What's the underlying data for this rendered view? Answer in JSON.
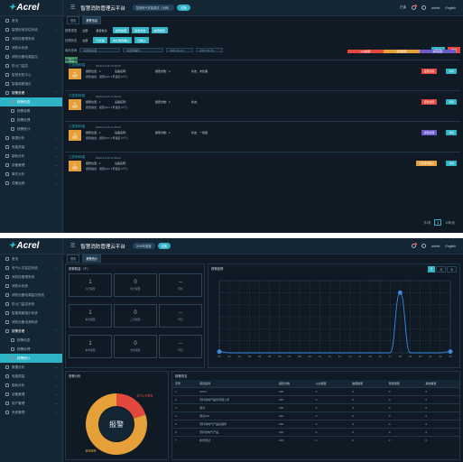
{
  "brand": {
    "logo": "Acrel"
  },
  "screen1": {
    "header": {
      "title": "智慧消防管理云平台",
      "pill": "智慧电气安装调试（示例）",
      "pill2": "切换",
      "right_items": [
        "已读",
        "admin",
        "English"
      ]
    },
    "tabs": [
      "首页",
      "报警信息"
    ],
    "sidebar": [
      {
        "label": "首页",
        "state": ""
      },
      {
        "label": "智慧用电评估系统",
        "state": "arrow"
      },
      {
        "label": "消防栓管理系统",
        "state": ""
      },
      {
        "label": "消防水系统",
        "state": ""
      },
      {
        "label": "消防设备电源监控",
        "state": ""
      },
      {
        "label": "防火门监控",
        "state": ""
      },
      {
        "label": "智慧安防中心",
        "state": ""
      },
      {
        "label": "智能疏散指示",
        "state": ""
      },
      {
        "label": "报警查看",
        "state": "open"
      },
      {
        "label": "报警信息",
        "state": "active"
      },
      {
        "label": "报警查看",
        "state": "sub"
      },
      {
        "label": "报警处理",
        "state": "sub"
      },
      {
        "label": "报警统计",
        "state": "sub"
      },
      {
        "label": "数据分析",
        "state": "arrow"
      },
      {
        "label": "电能质量",
        "state": "arrow"
      },
      {
        "label": "能耗分析",
        "state": "arrow"
      },
      {
        "label": "设备管理",
        "state": "arrow"
      },
      {
        "label": "事件分析",
        "state": "arrow"
      },
      {
        "label": "设备运维",
        "state": "arrow"
      }
    ],
    "filters": {
      "row1_label": "报警类型",
      "row1_chips": [
        "全部",
        "报警信息",
        "报警故障",
        "报警状态",
        "故障报警"
      ],
      "row2_label": "处理状态",
      "row2_chips": [
        "全部",
        "已处理",
        "未处理待确认",
        "已确认"
      ],
      "row3_label": "事件查询",
      "search_placeholder": "请选择设备",
      "search2_placeholder": "请选择事件",
      "start_date": "2020-01-01",
      "end_date": "2020-01-15",
      "btn_query": "查询",
      "btn_reset": "重置",
      "btn_export": "导出"
    },
    "legend": [
      {
        "label": "火灾报警",
        "color": "#e2483d"
      },
      {
        "label": "预警报警",
        "color": "#e5a03a"
      },
      {
        "label": "故障报警",
        "color": "#6a5acd"
      }
    ],
    "alarms": [
      {
        "name": "江苏安科瑞",
        "time": "2020-01-15 14:36:22",
        "icon": "报警",
        "point": "报警位置：1",
        "dev": "设备名称：",
        "count": "报警次数：1",
        "state": "状态：未处理",
        "desc": "报警描述：报警(ch1 1号温度 37℃)",
        "badge": "报警处理",
        "badge_color": "#e2483d",
        "detail": "详情"
      },
      {
        "name": "江苏安科瑞",
        "time": "2020-01-15 14:36:22",
        "icon": "报警",
        "point": "报警位置：1",
        "dev": "设备名称：",
        "count": "报警次数：1",
        "state": "状态：",
        "desc": "报警描述：报警(ch1 1号温度 37℃)",
        "badge": "报警处理",
        "badge_color": "#e2483d",
        "detail": "详情"
      },
      {
        "name": "江苏安科瑞",
        "time": "2020-01-15 14:36:22",
        "icon": "报警",
        "point": "报警位置：1",
        "dev": "设备名称：",
        "count": "报警次数：1",
        "state": "状态：一级报",
        "desc": "报警描述：报警(ch1 1号温度 37℃)",
        "badge": "报警处理",
        "badge_color": "#6a5acd",
        "detail": "详情"
      },
      {
        "name": "江苏安科瑞",
        "time": "2020-01-15 14:36:22",
        "icon": "报警",
        "point": "报警位置：1",
        "dev": "设备名称：",
        "count": "",
        "state": "",
        "desc": "报警描述：报警(ch1 1号温度 37℃)",
        "badge": "已处理待确认",
        "badge_color": "#e5a03a",
        "detail": "详情"
      }
    ],
    "pager": {
      "total": "共1条",
      "page": "1",
      "size": "10条/页"
    }
  },
  "screen2": {
    "header": {
      "title": "智慧消防管理云平台",
      "pill": "2020年度报",
      "pill2": "切换",
      "right_items": [
        "admin",
        "English"
      ]
    },
    "tabs": [
      "首页",
      "报警统计"
    ],
    "sidebar": [
      {
        "label": "首页",
        "state": ""
      },
      {
        "label": "电气火灾监控系统",
        "state": "arrow"
      },
      {
        "label": "消防栓管理系统",
        "state": ""
      },
      {
        "label": "消防水系统",
        "state": ""
      },
      {
        "label": "消防设备电源监控系统",
        "state": ""
      },
      {
        "label": "防火门监控系统",
        "state": ""
      },
      {
        "label": "智能疏散指示系统",
        "state": ""
      },
      {
        "label": "消防设备电源系统",
        "state": ""
      },
      {
        "label": "报警查看",
        "state": "open"
      },
      {
        "label": "报警信息",
        "state": "sub"
      },
      {
        "label": "报警处理",
        "state": "sub"
      },
      {
        "label": "报警统计",
        "state": "active"
      },
      {
        "label": "数据分析",
        "state": "arrow"
      },
      {
        "label": "电能质量",
        "state": "arrow"
      },
      {
        "label": "能耗分析",
        "state": "arrow"
      },
      {
        "label": "设备管理",
        "state": "arrow"
      },
      {
        "label": "用户管理",
        "state": "arrow"
      },
      {
        "label": "系统管理",
        "state": "arrow"
      }
    ],
    "stats_title": "报警数量（个）",
    "stats": [
      {
        "value": "1",
        "label": "今日报警"
      },
      {
        "value": "0",
        "label": "昨日报警"
      },
      {
        "value": "--",
        "label": "环比"
      },
      {
        "value": "1",
        "label": "本月报警"
      },
      {
        "value": "0",
        "label": "上月报警"
      },
      {
        "value": "--",
        "label": "环比"
      },
      {
        "value": "1",
        "label": "本年报警"
      },
      {
        "value": "0",
        "label": "去年报警"
      },
      {
        "value": "--",
        "label": "环比"
      }
    ],
    "trend": {
      "title": "报警趋势",
      "buttons": [
        "日",
        "月",
        "年"
      ]
    },
    "donut": {
      "title": "报警分析",
      "center_label": "报警",
      "slices": [
        {
          "label": "电气火灾报警",
          "value": 20,
          "color": "#e2483d"
        },
        {
          "label": "其他报警",
          "value": 80,
          "color": "#e5a03a"
        }
      ]
    },
    "table": {
      "title": "报警排名",
      "headers": [
        "序号",
        "项目名称",
        "报警次数",
        "火灾报警",
        "故障报警",
        "预警报警",
        "其他报警"
      ],
      "rows": [
        [
          "1",
          "ACS1",
          "100",
          "0",
          "0",
          "0",
          "0"
        ],
        [
          "2",
          "安科瑞电气股份有限公司",
          "100",
          "0",
          "0",
          "0",
          "0"
        ],
        [
          "3",
          "测试",
          "100",
          "0",
          "0",
          "0",
          "0"
        ],
        [
          "4",
          "测试215",
          "100",
          "0",
          "0",
          "0",
          "0"
        ],
        [
          "5",
          "安科瑞电气产品检验所",
          "100",
          "0",
          "0",
          "0",
          "0"
        ],
        [
          "6",
          "安科瑞电气产品",
          "100",
          "0",
          "0",
          "0",
          "0"
        ],
        [
          "7",
          "新增测试",
          "100",
          "0",
          "0",
          "0",
          "0"
        ]
      ]
    }
  },
  "chart_data": {
    "type": "line",
    "x": [
      "00",
      "01",
      "02",
      "03",
      "04",
      "05",
      "06",
      "07",
      "08",
      "09",
      "10",
      "11",
      "12",
      "13",
      "14",
      "15",
      "16",
      "17",
      "18",
      "19",
      "20",
      "21",
      "22",
      "23"
    ],
    "series": [
      {
        "values": [
          0.02,
          0,
          0,
          0,
          0,
          0,
          0,
          0,
          0,
          0,
          0,
          0,
          0,
          0,
          0,
          0,
          0,
          0,
          1,
          0,
          0,
          0,
          0,
          0.02
        ]
      }
    ],
    "ylim": [
      0,
      1.2
    ],
    "grid": true
  }
}
